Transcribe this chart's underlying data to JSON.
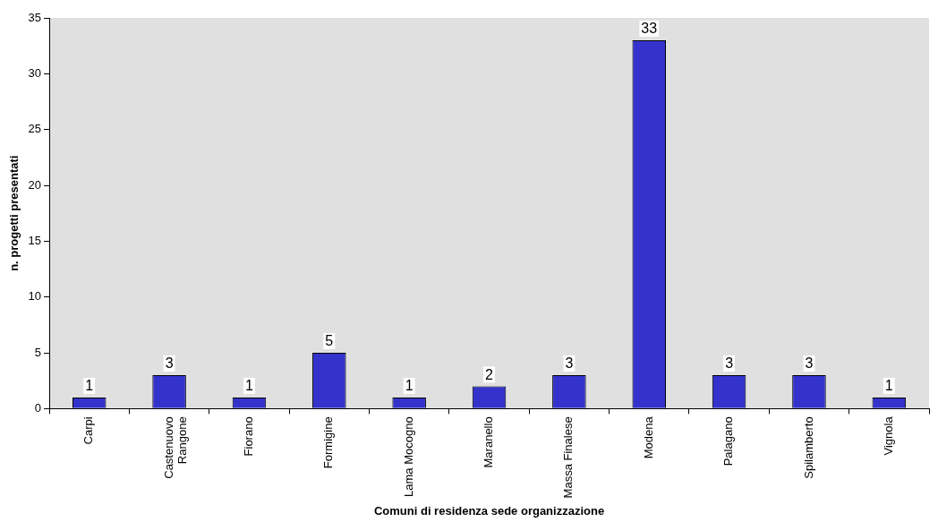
{
  "chart_data": {
    "type": "bar",
    "xlabel": "Comuni di residenza sede organizzazione",
    "ylabel": "n. progetti presentati",
    "categories": [
      "Carpi",
      "Castenuovo Rangone",
      "Fiorano",
      "Formigine",
      "Lama Mocogno",
      "Maranello",
      "Massa Finalese",
      "Modena",
      "Palagano",
      "Spilamberto",
      "Vignola"
    ],
    "values": [
      1,
      3,
      1,
      5,
      1,
      2,
      3,
      33,
      3,
      3,
      1
    ],
    "color": "#3333cc",
    "ylim": [
      0,
      35
    ],
    "yticks": [
      0,
      5,
      10,
      15,
      20,
      25,
      30,
      35
    ],
    "grid": false,
    "legend": false,
    "data_labels": true
  }
}
